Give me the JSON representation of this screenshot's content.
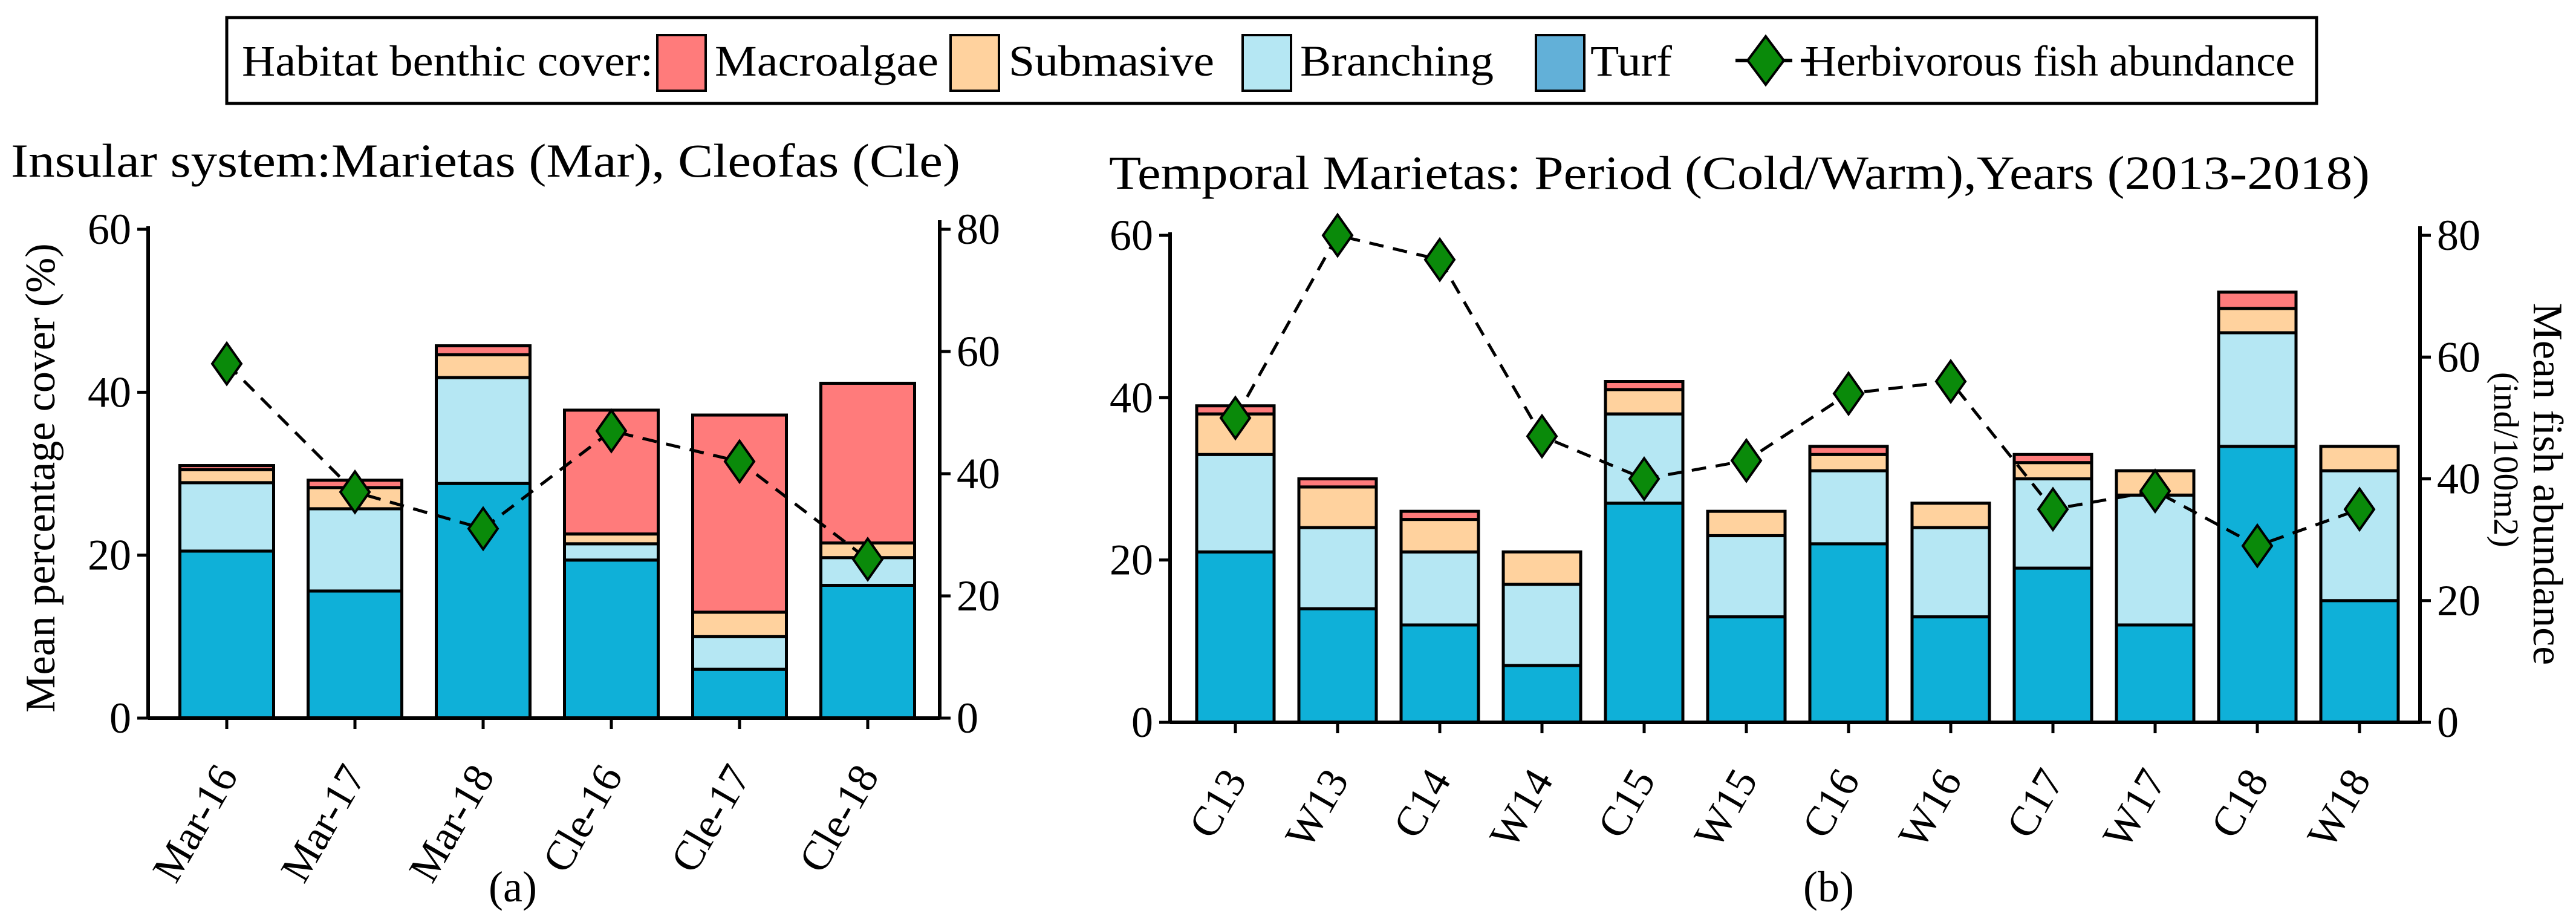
{
  "legend": {
    "title": "Habitat benthic cover:",
    "items": [
      {
        "label": "Macroalgae",
        "color": "#ff7b7b"
      },
      {
        "label": "Submasive",
        "color": "#ffd29e"
      },
      {
        "label": "Branching",
        "color": "#b5e7f3"
      },
      {
        "label": "Turf",
        "color": "#62b0d8"
      }
    ],
    "fish_label": "Herbivorous fish abundance",
    "fish_color": "#0a8a0a"
  },
  "chart_data": [
    {
      "type": "bar",
      "panel_label": "(a)",
      "title": "Insular system:Marietas (Mar), Cleofas (Cle)",
      "ylabel": "Mean percentage cover (%)",
      "y2label": "",
      "ylim": [
        0,
        60
      ],
      "y2lim": [
        0,
        80
      ],
      "yticks": [
        "0",
        "20",
        "40",
        "60"
      ],
      "y2ticks": [
        "0",
        "20",
        "40",
        "60",
        "80"
      ],
      "categories": [
        "Mar-16",
        "Mar-17",
        "Mar-18",
        "Cle-16",
        "Cle-17",
        "Cle-18"
      ],
      "series": [
        {
          "name": "Turf",
          "color": "#0fb0d8",
          "values": [
            20.5,
            15.6,
            28.8,
            19.4,
            6.0,
            16.3
          ]
        },
        {
          "name": "Branching",
          "color": "#b5e7f3",
          "values": [
            8.4,
            10.1,
            13.0,
            2.0,
            4.0,
            3.4
          ]
        },
        {
          "name": "Submasive",
          "color": "#ffd29e",
          "values": [
            1.6,
            2.6,
            2.8,
            1.2,
            3.0,
            1.8
          ]
        },
        {
          "name": "Macroalgae",
          "color": "#ff7b7b",
          "values": [
            0.5,
            0.9,
            1.1,
            15.2,
            24.2,
            19.6
          ]
        }
      ],
      "fish": [
        58,
        37,
        31,
        47,
        42,
        26
      ]
    },
    {
      "type": "bar",
      "panel_label": "(b)",
      "title": "Temporal Marietas: Period (Cold/Warm),Years (2013-2018)",
      "ylabel": "",
      "y2label": "Mean fish abundance",
      "y2sublabel": "(ind/100m2)",
      "ylim": [
        0,
        60
      ],
      "y2lim": [
        0,
        80
      ],
      "yticks": [
        "0",
        "20",
        "40",
        "60"
      ],
      "y2ticks": [
        "0",
        "20",
        "40",
        "60",
        "80"
      ],
      "categories": [
        "C13",
        "W13",
        "C14",
        "W14",
        "C15",
        "W15",
        "C16",
        "W16",
        "C17",
        "W17",
        "C18",
        "W18"
      ],
      "series": [
        {
          "name": "Turf",
          "color": "#0fb0d8",
          "values": [
            21,
            14,
            12,
            7,
            27,
            13,
            22,
            13,
            19,
            12,
            34,
            15
          ]
        },
        {
          "name": "Branching",
          "color": "#b5e7f3",
          "values": [
            12,
            10,
            9,
            10,
            11,
            10,
            9,
            11,
            11,
            16,
            14,
            16
          ]
        },
        {
          "name": "Submasive",
          "color": "#ffd29e",
          "values": [
            5,
            5,
            4,
            4,
            3,
            3,
            2,
            3,
            2,
            3,
            3,
            3
          ]
        },
        {
          "name": "Macroalgae",
          "color": "#ff7b7b",
          "values": [
            1,
            1,
            1,
            0,
            1,
            0,
            1,
            0,
            1,
            0,
            2,
            0
          ]
        }
      ],
      "fish": [
        50,
        80,
        76,
        47,
        40,
        43,
        54,
        56,
        35,
        38,
        29,
        35
      ]
    }
  ]
}
